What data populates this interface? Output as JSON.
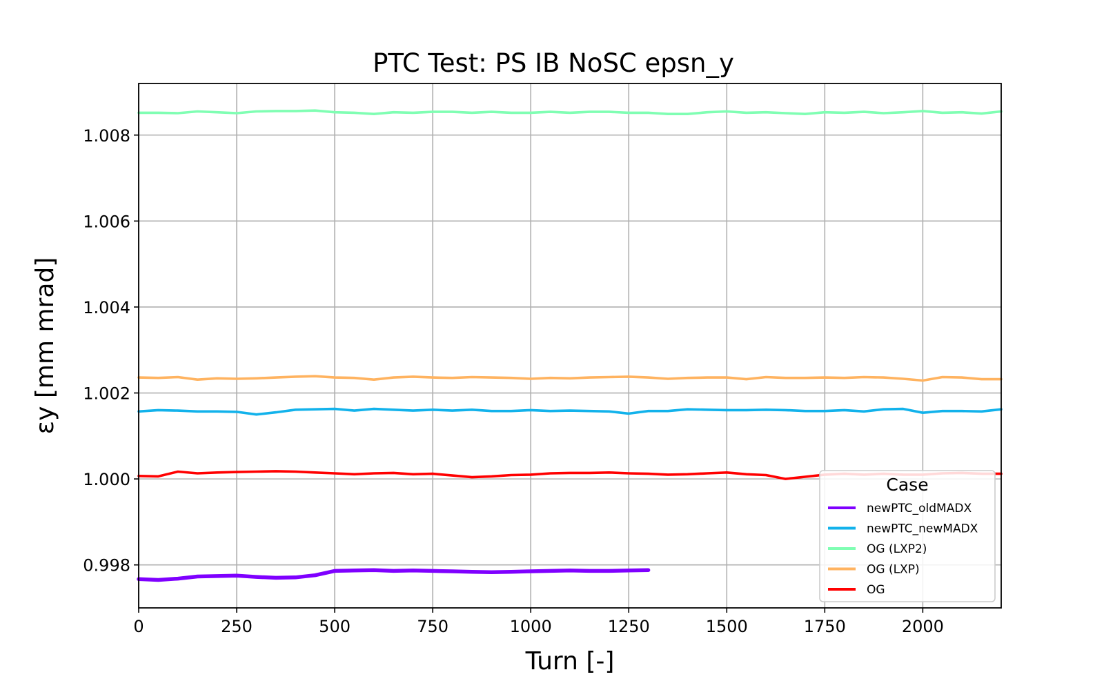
{
  "chart_data": {
    "type": "line",
    "title": "PTC Test: PS IB NoSC epsn_y",
    "xlabel": "Turn [-]",
    "ylabel": "εy [mm mrad]",
    "xlim": [
      0,
      2200
    ],
    "ylim": [
      0.997,
      1.0092
    ],
    "xticks": [
      0,
      250,
      500,
      750,
      1000,
      1250,
      1500,
      1750,
      2000
    ],
    "xtick_labels": [
      "0",
      "250",
      "500",
      "750",
      "1000",
      "1250",
      "1500",
      "1750",
      "2000"
    ],
    "yticks": [
      0.998,
      1.0,
      1.002,
      1.004,
      1.006,
      1.008
    ],
    "ytick_labels": [
      "0.998",
      "1.000",
      "1.002",
      "1.004",
      "1.006",
      "1.008"
    ],
    "grid": true,
    "legend": {
      "title": "Case",
      "position": "lower-right"
    },
    "series": [
      {
        "name": "newPTC_oldMADX",
        "color": "#7f00ff",
        "x": [
          0,
          50,
          100,
          150,
          200,
          250,
          300,
          350,
          400,
          450,
          500,
          550,
          600,
          650,
          700,
          750,
          800,
          850,
          900,
          950,
          1000,
          1050,
          1100,
          1150,
          1200,
          1250,
          1300
        ],
        "y": [
          0.99767,
          0.99765,
          0.99768,
          0.99773,
          0.99774,
          0.99775,
          0.99772,
          0.9977,
          0.99771,
          0.99776,
          0.99786,
          0.99787,
          0.99788,
          0.99786,
          0.99787,
          0.99786,
          0.99785,
          0.99784,
          0.99783,
          0.99784,
          0.99785,
          0.99786,
          0.99787,
          0.99786,
          0.99786,
          0.99787,
          0.99788
        ]
      },
      {
        "name": "newPTC_newMADX",
        "color": "#12b2eb",
        "x": [
          0,
          50,
          100,
          150,
          200,
          250,
          300,
          350,
          400,
          450,
          500,
          550,
          600,
          650,
          700,
          750,
          800,
          850,
          900,
          950,
          1000,
          1050,
          1100,
          1150,
          1200,
          1250,
          1300,
          1350,
          1400,
          1450,
          1500,
          1550,
          1600,
          1650,
          1700,
          1750,
          1800,
          1850,
          1900,
          1950,
          2000,
          2050,
          2100,
          2150,
          2200
        ],
        "y": [
          1.00157,
          1.0016,
          1.00159,
          1.00157,
          1.00157,
          1.00156,
          1.0015,
          1.00155,
          1.00161,
          1.00162,
          1.00163,
          1.00159,
          1.00163,
          1.00161,
          1.00159,
          1.00161,
          1.00159,
          1.00161,
          1.00158,
          1.00158,
          1.0016,
          1.00158,
          1.00159,
          1.00158,
          1.00157,
          1.00152,
          1.00158,
          1.00158,
          1.00162,
          1.00161,
          1.0016,
          1.0016,
          1.00161,
          1.0016,
          1.00158,
          1.00158,
          1.0016,
          1.00157,
          1.00162,
          1.00163,
          1.00154,
          1.00158,
          1.00158,
          1.00157,
          1.00162
        ]
      },
      {
        "name": "OG (LXP2)",
        "color": "#80feb3",
        "x": [
          0,
          50,
          100,
          150,
          200,
          250,
          300,
          350,
          400,
          450,
          500,
          550,
          600,
          650,
          700,
          750,
          800,
          850,
          900,
          950,
          1000,
          1050,
          1100,
          1150,
          1200,
          1250,
          1300,
          1350,
          1400,
          1450,
          1500,
          1550,
          1600,
          1650,
          1700,
          1750,
          1800,
          1850,
          1900,
          1950,
          2000,
          2050,
          2100,
          2150,
          2200
        ],
        "y": [
          1.00852,
          1.00852,
          1.00851,
          1.00855,
          1.00853,
          1.00851,
          1.00855,
          1.00856,
          1.00856,
          1.00857,
          1.00853,
          1.00852,
          1.00849,
          1.00853,
          1.00852,
          1.00854,
          1.00854,
          1.00852,
          1.00854,
          1.00852,
          1.00852,
          1.00854,
          1.00852,
          1.00854,
          1.00854,
          1.00852,
          1.00852,
          1.00849,
          1.00849,
          1.00853,
          1.00855,
          1.00852,
          1.00853,
          1.00851,
          1.00849,
          1.00853,
          1.00852,
          1.00854,
          1.00851,
          1.00853,
          1.00856,
          1.00852,
          1.00853,
          1.0085,
          1.00855
        ]
      },
      {
        "name": "OG (LXP)",
        "color": "#ffb360",
        "x": [
          0,
          50,
          100,
          150,
          200,
          250,
          300,
          350,
          400,
          450,
          500,
          550,
          600,
          650,
          700,
          750,
          800,
          850,
          900,
          950,
          1000,
          1050,
          1100,
          1150,
          1200,
          1250,
          1300,
          1350,
          1400,
          1450,
          1500,
          1550,
          1600,
          1650,
          1700,
          1750,
          1800,
          1850,
          1900,
          1950,
          2000,
          2050,
          2100,
          2150,
          2200
        ],
        "y": [
          1.00236,
          1.00235,
          1.00237,
          1.00231,
          1.00234,
          1.00233,
          1.00234,
          1.00236,
          1.00238,
          1.00239,
          1.00236,
          1.00235,
          1.00231,
          1.00236,
          1.00238,
          1.00236,
          1.00235,
          1.00237,
          1.00236,
          1.00235,
          1.00233,
          1.00235,
          1.00234,
          1.00236,
          1.00237,
          1.00238,
          1.00236,
          1.00233,
          1.00235,
          1.00236,
          1.00236,
          1.00232,
          1.00237,
          1.00235,
          1.00235,
          1.00236,
          1.00235,
          1.00237,
          1.00236,
          1.00233,
          1.00229,
          1.00237,
          1.00236,
          1.00232,
          1.00232
        ]
      },
      {
        "name": "OG",
        "color": "#ff0000",
        "x": [
          0,
          50,
          100,
          150,
          200,
          250,
          300,
          350,
          400,
          450,
          500,
          550,
          600,
          650,
          700,
          750,
          800,
          850,
          900,
          950,
          1000,
          1050,
          1100,
          1150,
          1200,
          1250,
          1300,
          1350,
          1400,
          1450,
          1500,
          1550,
          1600,
          1650,
          1700,
          1750,
          1800,
          1850,
          1900,
          1950,
          2000,
          2050,
          2100,
          2150,
          2200
        ],
        "y": [
          1.00007,
          1.00006,
          1.00017,
          1.00013,
          1.00015,
          1.00016,
          1.00017,
          1.00018,
          1.00017,
          1.00015,
          1.00013,
          1.00011,
          1.00013,
          1.00014,
          1.00011,
          1.00012,
          1.00008,
          1.00004,
          1.00006,
          1.00009,
          1.0001,
          1.00013,
          1.00014,
          1.00014,
          1.00015,
          1.00013,
          1.00012,
          1.0001,
          1.00011,
          1.00013,
          1.00015,
          1.00011,
          1.00009,
          1.0,
          1.00005,
          1.0001,
          1.00012,
          1.0001,
          1.00012,
          1.0001,
          1.0001,
          1.00013,
          1.00014,
          1.00012,
          1.00012
        ]
      }
    ]
  }
}
